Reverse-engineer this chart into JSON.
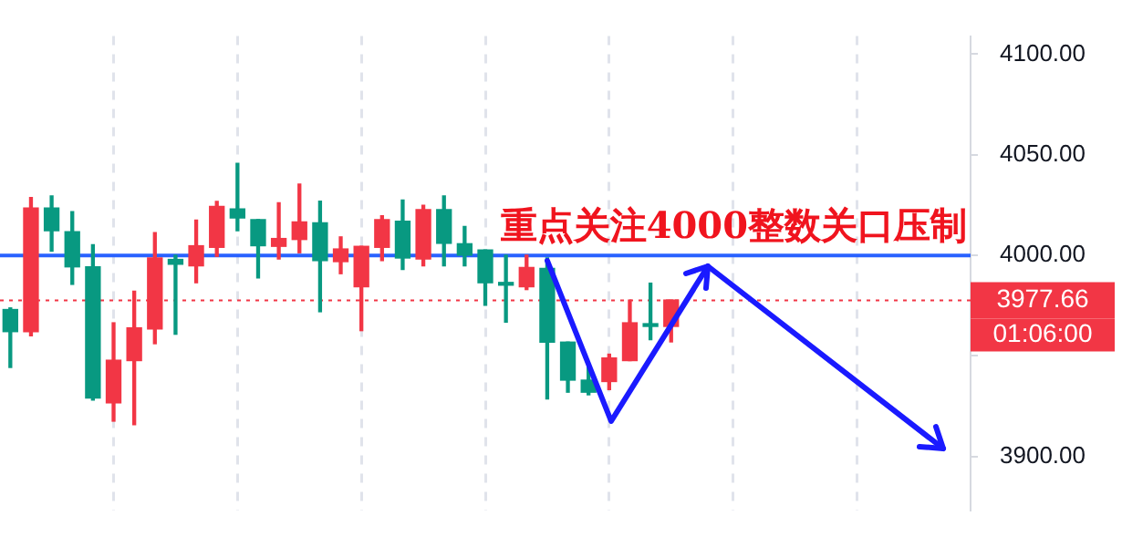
{
  "chart_data": {
    "type": "candlestick",
    "categories": [
      null,
      null,
      null,
      null,
      null,
      null,
      null,
      null,
      null,
      null,
      null,
      null,
      null,
      null,
      null,
      null,
      null,
      null,
      null,
      null,
      null,
      null,
      null,
      null,
      null,
      null,
      null,
      null,
      null,
      null,
      null,
      null,
      null,
      null,
      null,
      null,
      null,
      null,
      null,
      null,
      null,
      null,
      null,
      null,
      null,
      null,
      null
    ],
    "ohlc": [
      [
        3962.1,
        3973.9,
        3944.3,
        3973.1
      ],
      [
        4023.6,
        4028.8,
        3960.0,
        3962.1
      ],
      [
        4012.3,
        4029.6,
        4002.1,
        4023.6
      ],
      [
        3994.3,
        4021.7,
        3985.6,
        4011.8
      ],
      [
        3929.1,
        4005.3,
        3928.1,
        3994.3
      ],
      [
        3947.9,
        3966.5,
        3917.6,
        3926.7
      ],
      [
        3964.0,
        3982.2,
        3915.8,
        3947.7
      ],
      [
        3998.7,
        4011.3,
        3956.1,
        3963.4
      ],
      [
        3995.6,
        4000.1,
        3960.8,
        3998.0
      ],
      [
        4004.8,
        4017.6,
        3986.4,
        3994.8
      ],
      [
        4024.4,
        4026.8,
        3999.5,
        4004.0
      ],
      [
        4018.6,
        4045.8,
        4012.3,
        4023.1
      ],
      [
        4004.8,
        4017.8,
        3988.8,
        4017.8
      ],
      [
        4008.4,
        4026.2,
        3998.2,
        4004.5
      ],
      [
        4016.6,
        4035.4,
        4001.3,
        4007.9
      ],
      [
        3997.4,
        4027.0,
        3972.0,
        4016.2
      ],
      [
        4003.2,
        4009.2,
        3990.9,
        3996.9
      ],
      [
        4004.5,
        4004.5,
        3962.6,
        3984.4
      ],
      [
        4017.8,
        4019.7,
        3997.4,
        4004.0
      ],
      [
        3998.7,
        4027.5,
        3993.0,
        4017.0
      ],
      [
        4022.8,
        4024.9,
        3994.8,
        3998.2
      ],
      [
        4006.0,
        4029.6,
        3994.8,
        4022.8
      ],
      [
        4000.1,
        4014.4,
        3994.8,
        4005.8
      ],
      [
        3986.4,
        4002.7,
        3975.2,
        4002.7
      ],
      [
        3985.2,
        4000.1,
        3966.8,
        3986.2
      ],
      [
        3994.0,
        4000.1,
        3983.0,
        3984.4
      ],
      [
        3956.9,
        3998.7,
        3928.6,
        3993.5
      ],
      [
        3938.0,
        3956.9,
        3932.0,
        3956.9
      ],
      [
        3932.0,
        3945.1,
        3930.7,
        3938.0
      ],
      [
        3949.0,
        3950.9,
        3933.3,
        3937.3
      ],
      [
        3966.5,
        3977.8,
        3947.7,
        3947.7
      ],
      [
        3964.7,
        3986.2,
        3958.1,
        3966.0
      ],
      [
        3977.8,
        3977.8,
        3957.0,
        3964.7
      ],
      null,
      null,
      null,
      null,
      null,
      null,
      null,
      null,
      null,
      null,
      null,
      null,
      null,
      null
    ],
    "colors": [
      "#089981",
      "#f23645",
      "#089981",
      "#089981",
      "#089981",
      "#f23645",
      "#f23645",
      "#f23645",
      "#089981",
      "#f23645",
      "#f23645",
      "#089981",
      "#089981",
      "#f23645",
      "#f23645",
      "#089981",
      "#f23645",
      "#f23645",
      "#f23645",
      "#089981",
      "#f23645",
      "#089981",
      "#089981",
      "#089981",
      "#089981",
      "#f23645",
      "#089981",
      "#089981",
      "#089981",
      "#f23645",
      "#f23645",
      "#089981",
      "#f23645",
      null,
      null,
      null,
      null,
      null,
      null,
      null,
      null,
      null,
      null,
      null,
      null,
      null,
      null
    ],
    "ylim": [
      3873,
      4109
    ],
    "yticks": [
      {
        "value": 3900,
        "label": "3900.00"
      },
      {
        "value": 3950,
        "label": null
      },
      {
        "value": 4000,
        "label": "4000.00"
      },
      {
        "value": 4050,
        "label": "4050.00"
      },
      {
        "value": 4100,
        "label": "4100.00"
      }
    ],
    "grid": "x",
    "legend": false,
    "tick_labels": "y",
    "ref_lines": [
      {
        "axis": "y",
        "value": 4000,
        "color": "#2962ff",
        "line_style": "solid"
      },
      {
        "axis": "y",
        "value": 3977.66,
        "label": "3977.66",
        "color": "#f23645",
        "line_style": "dotted"
      }
    ],
    "annotations": [
      {
        "text": "重点关注4000整数关口压制",
        "y": 4000
      },
      "01:06:00"
    ]
  }
}
